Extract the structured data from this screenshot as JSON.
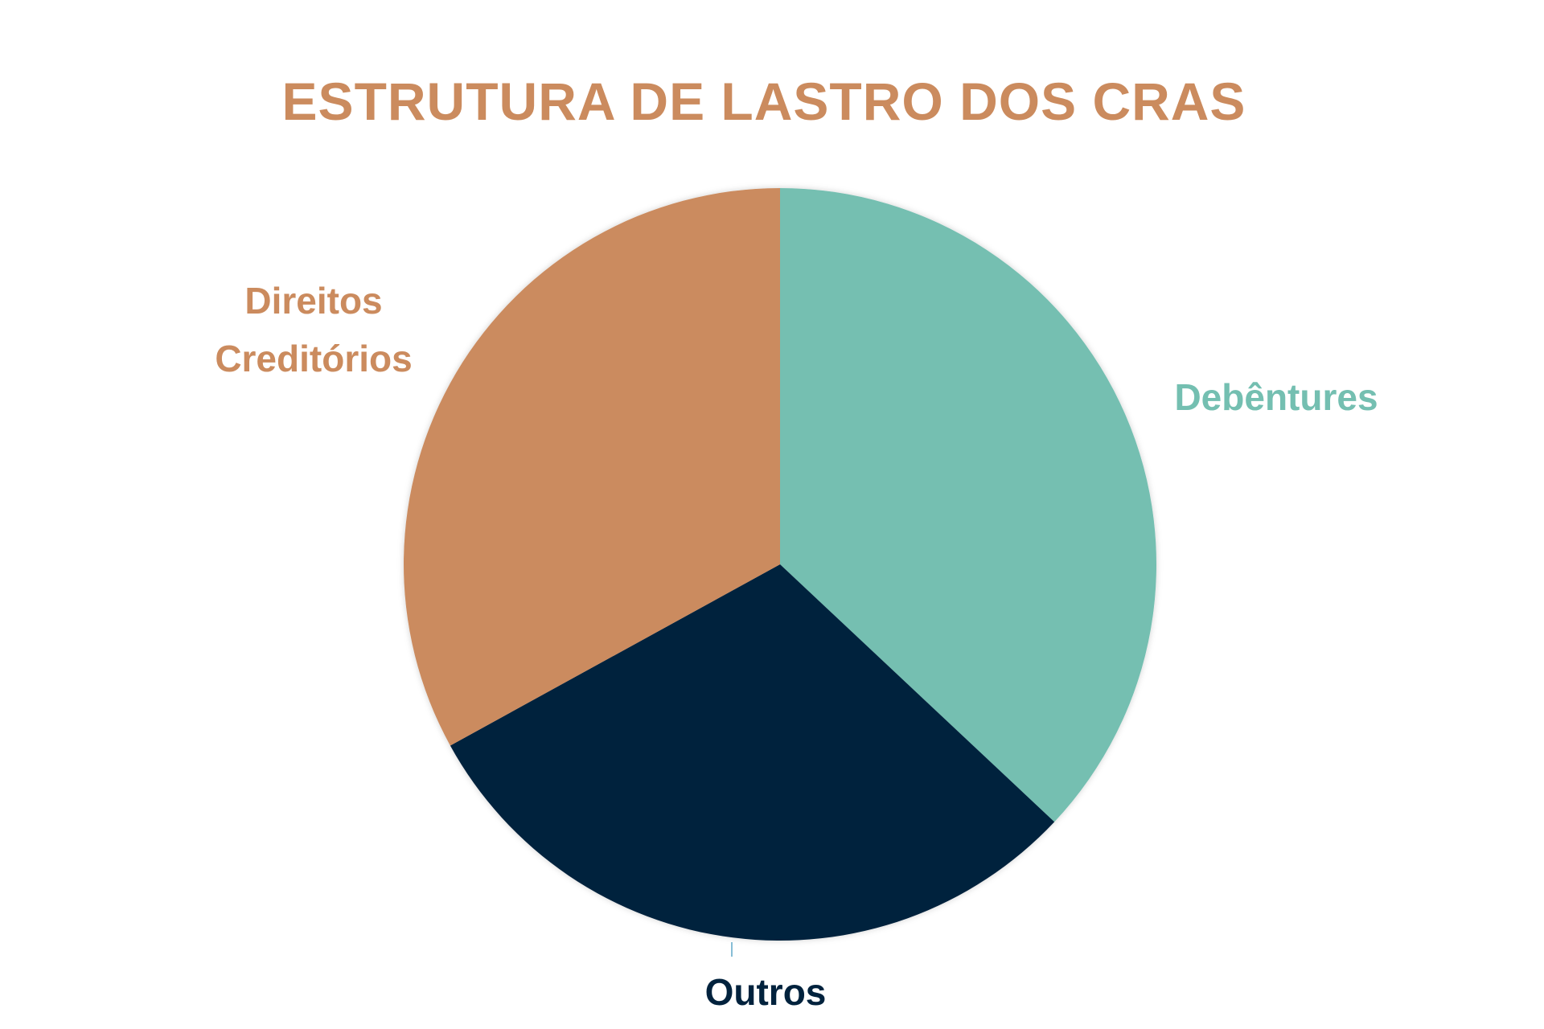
{
  "chart_data": {
    "type": "pie",
    "title": "ESTRUTURA DE LASTRO DOS CRAS",
    "categories": [
      "Debêntures",
      "Outros",
      "Direitos Creditórios"
    ],
    "values": [
      37,
      30,
      33
    ],
    "colors": [
      "#74bfb1",
      "#01223d",
      "#cb8b5e"
    ]
  }
}
